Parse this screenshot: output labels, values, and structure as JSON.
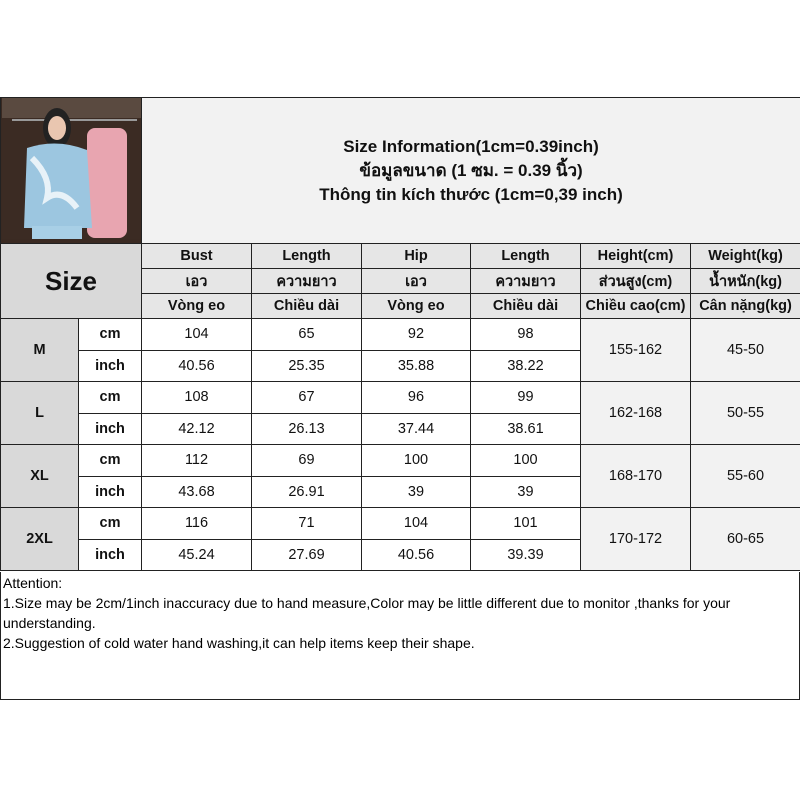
{
  "title": {
    "line1": "Size Information(1cm=0.39inch)",
    "line2": "ข้อมูลขนาด (1 ซม. = 0.39 นิ้ว)",
    "line3": "Thông tin kích thước (1cm=0,39 inch)"
  },
  "size_label": "Size",
  "headers": [
    [
      "Bust",
      "Length",
      "Hip",
      "Length",
      "Height(cm)",
      "Weight(kg)"
    ],
    [
      "เอว",
      "ความยาว",
      "เอว",
      "ความยาว",
      "ส่วนสูง(cm)",
      "น้ำหนัก(kg)"
    ],
    [
      "Vòng eo",
      "Chiều dài",
      "Vòng eo",
      "Chiều dài",
      "Chiều cao(cm)",
      "Cân nặng(kg)"
    ]
  ],
  "rows": [
    {
      "size": "M",
      "cm": [
        "104",
        "65",
        "92",
        "98"
      ],
      "inch": [
        "40.56",
        "25.35",
        "35.88",
        "38.22"
      ],
      "height": "155-162",
      "weight": "45-50"
    },
    {
      "size": "L",
      "cm": [
        "108",
        "67",
        "96",
        "99"
      ],
      "inch": [
        "42.12",
        "26.13",
        "37.44",
        "38.61"
      ],
      "height": "162-168",
      "weight": "50-55"
    },
    {
      "size": "XL",
      "cm": [
        "112",
        "69",
        "100",
        "100"
      ],
      "inch": [
        "43.68",
        "26.91",
        "39",
        "39"
      ],
      "height": "168-170",
      "weight": "55-60"
    },
    {
      "size": "2XL",
      "cm": [
        "116",
        "71",
        "104",
        "101"
      ],
      "inch": [
        "45.24",
        "27.69",
        "40.56",
        "39.39"
      ],
      "height": "170-172",
      "weight": "60-65"
    }
  ],
  "units": {
    "cm": "cm",
    "inch": "inch"
  },
  "attention": {
    "heading": "Attention:",
    "item1": "1.Size may be 2cm/1inch inaccuracy due to hand measure,Color may be little different due to monitor ,thanks for your understanding.",
    "item2": "2.Suggestion of cold water hand washing,it can help items keep their shape."
  }
}
